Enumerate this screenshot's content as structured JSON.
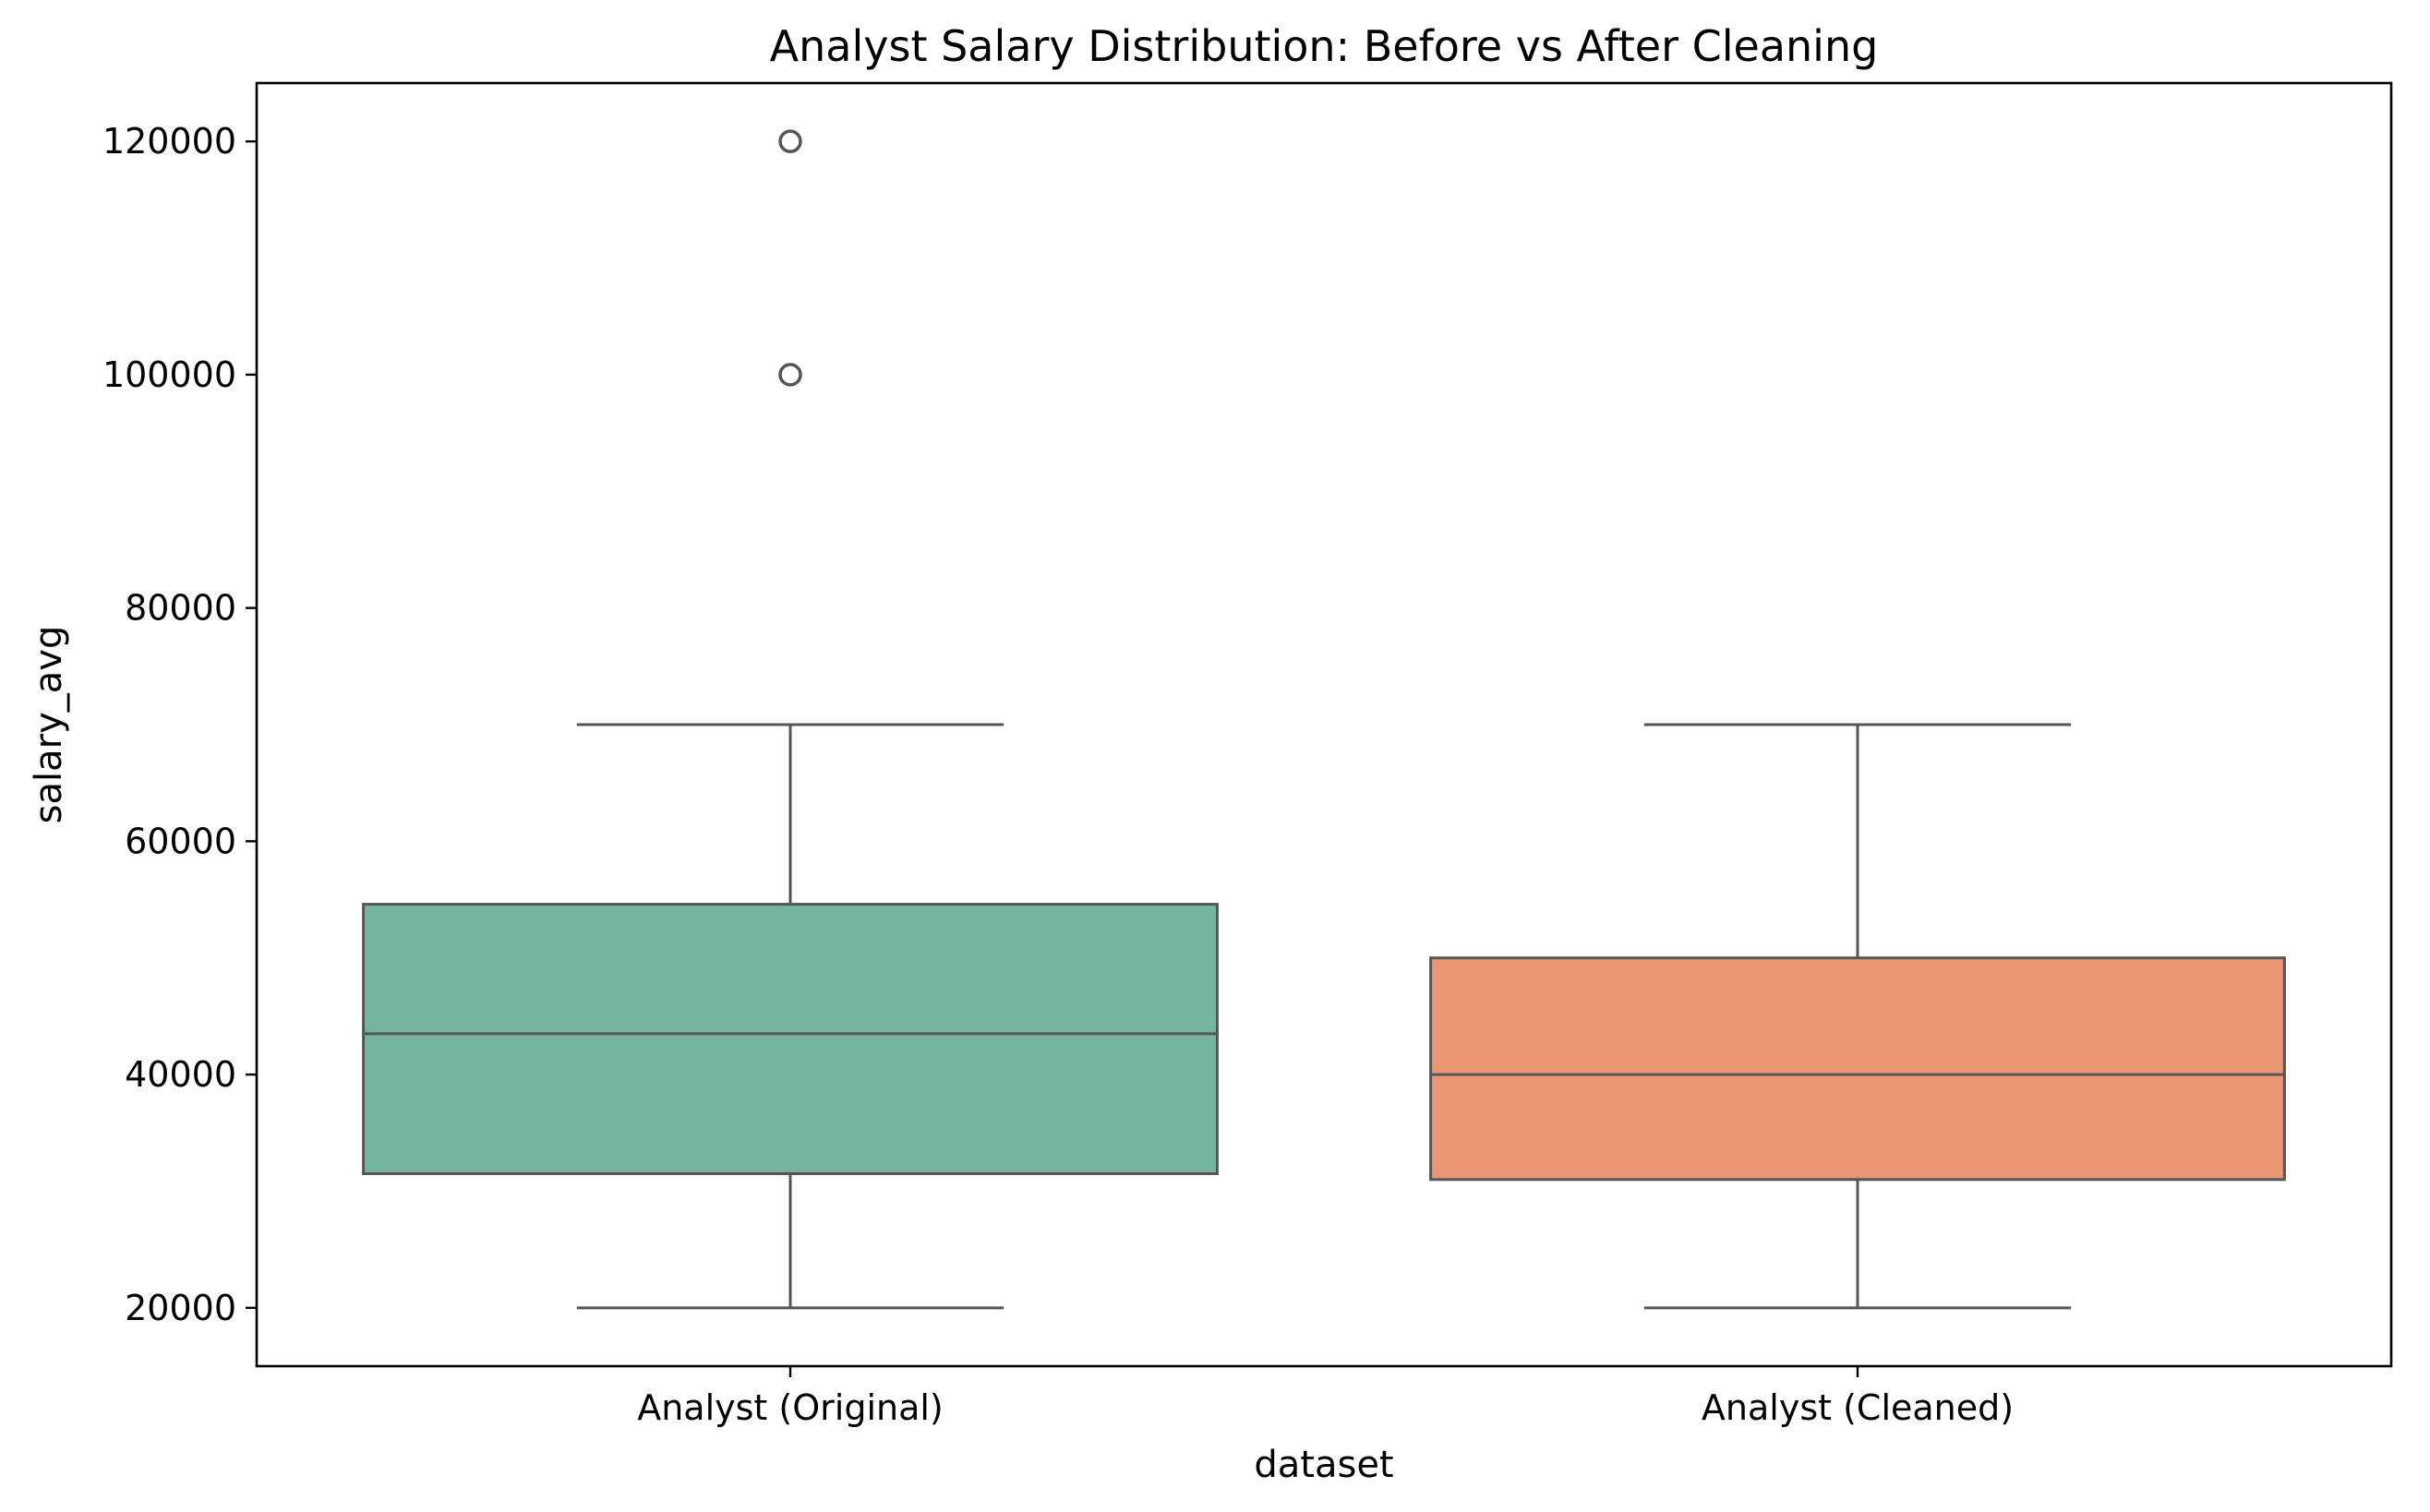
{
  "chart_data": {
    "type": "box",
    "title": "Analyst Salary Distribution: Before vs After Cleaning",
    "xlabel": "dataset",
    "ylabel": "salary_avg",
    "ylim": [
      15000,
      125000
    ],
    "yticks": [
      20000,
      40000,
      60000,
      80000,
      100000,
      120000
    ],
    "ytick_labels": [
      "20000",
      "40000",
      "60000",
      "80000",
      "100000",
      "120000"
    ],
    "grid": false,
    "categories": [
      "Analyst (Original)",
      "Analyst (Cleaned)"
    ],
    "series": [
      {
        "name": "Analyst (Original)",
        "color": "#75b5a0",
        "whisker_low": 20000,
        "q1": 31500,
        "median": 43500,
        "q3": 54600,
        "whisker_high": 70000,
        "outliers": [
          100000,
          120000
        ]
      },
      {
        "name": "Analyst (Cleaned)",
        "color": "#e89674",
        "whisker_low": 20000,
        "q1": 31000,
        "median": 40000,
        "q3": 50000,
        "whisker_high": 70000,
        "outliers": []
      }
    ],
    "line_color": "#555555",
    "frame_color": "#000000"
  }
}
